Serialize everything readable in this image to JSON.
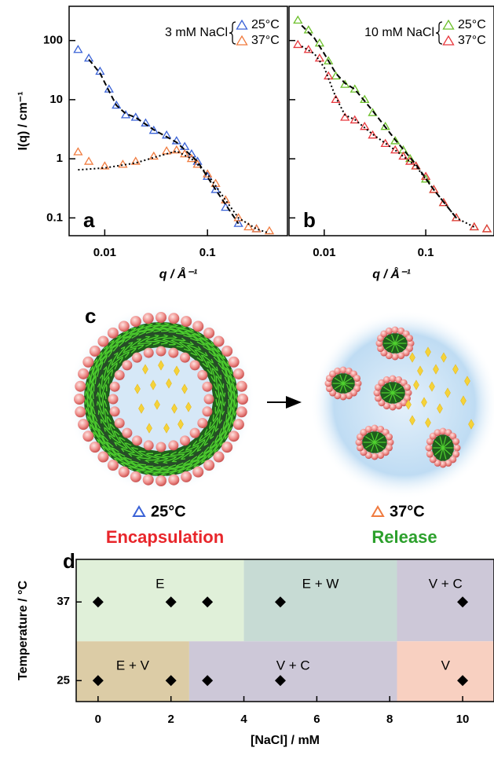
{
  "chart_data": [
    {
      "type": "scatter",
      "panel_label": "a",
      "ylabel": "I(q) / cm⁻¹",
      "xlabel": "q / Å⁻¹",
      "log_x": true,
      "log_y": true,
      "xlim": [
        0.0045,
        0.6
      ],
      "ylim": [
        0.05,
        380
      ],
      "xticks": [
        0.01,
        0.1
      ],
      "yticks": [
        0.1,
        1,
        10,
        100
      ],
      "show_ytick_labels": true,
      "legend": "upper right",
      "legend_title": "3 mM NaCl",
      "series": [
        {
          "name": "25°C",
          "color": "#3a62d6",
          "x": [
            0.0055,
            0.007,
            0.009,
            0.011,
            0.013,
            0.016,
            0.02,
            0.025,
            0.03,
            0.04,
            0.05,
            0.06,
            0.07,
            0.08,
            0.1,
            0.12,
            0.15,
            0.2,
            0.3
          ],
          "values": [
            70,
            50,
            30,
            15,
            8,
            5.5,
            5,
            4,
            3,
            2.5,
            2,
            1.6,
            1.2,
            0.9,
            0.5,
            0.3,
            0.15,
            0.08,
            0.065
          ]
        },
        {
          "name": "37°C",
          "color": "#f07b3f",
          "x": [
            0.0055,
            0.007,
            0.01,
            0.015,
            0.02,
            0.03,
            0.04,
            0.05,
            0.06,
            0.07,
            0.08,
            0.1,
            0.12,
            0.15,
            0.2,
            0.25,
            0.3,
            0.4
          ],
          "values": [
            1.3,
            0.9,
            0.75,
            0.8,
            0.9,
            1.1,
            1.35,
            1.4,
            1.2,
            1.0,
            0.8,
            0.55,
            0.38,
            0.2,
            0.1,
            0.07,
            0.065,
            0.06
          ]
        },
        {
          "color": "#000000",
          "style": "dashed",
          "x": [
            0.007,
            0.009,
            0.011,
            0.013,
            0.016,
            0.02,
            0.03,
            0.05,
            0.08,
            0.12,
            0.2
          ],
          "values": [
            48,
            28,
            14,
            8,
            5.8,
            5,
            3.1,
            1.9,
            0.9,
            0.3,
            0.08
          ]
        },
        {
          "color": "#000000",
          "style": "dotted",
          "x": [
            0.0055,
            0.01,
            0.02,
            0.03,
            0.05,
            0.07,
            0.1,
            0.15,
            0.2,
            0.3,
            0.4
          ],
          "values": [
            0.65,
            0.7,
            0.85,
            1.05,
            1.35,
            1.0,
            0.55,
            0.2,
            0.1,
            0.065,
            0.055
          ]
        }
      ]
    },
    {
      "type": "scatter",
      "panel_label": "b",
      "xlabel": "q / Å⁻¹",
      "log_x": true,
      "log_y": true,
      "xlim": [
        0.0045,
        0.47
      ],
      "ylim": [
        0.05,
        380
      ],
      "xticks": [
        0.01,
        0.1
      ],
      "yticks": [
        0.1,
        1,
        10,
        100
      ],
      "show_ytick_labels": false,
      "legend": "upper right",
      "legend_title": "10 mM NaCl",
      "series": [
        {
          "name": "25°C",
          "color": "#6cc02a",
          "x": [
            0.0055,
            0.007,
            0.009,
            0.011,
            0.013,
            0.016,
            0.02,
            0.025,
            0.03,
            0.04,
            0.05,
            0.06,
            0.07,
            0.08,
            0.1,
            0.12,
            0.15,
            0.2,
            0.3,
            0.4
          ],
          "values": [
            220,
            150,
            90,
            45,
            25,
            18,
            15,
            10,
            6,
            3.5,
            2,
            1.4,
            1.0,
            0.75,
            0.45,
            0.3,
            0.18,
            0.1,
            0.07,
            0.065
          ]
        },
        {
          "name": "37°C",
          "color": "#e8383d",
          "x": [
            0.0055,
            0.007,
            0.009,
            0.011,
            0.013,
            0.016,
            0.02,
            0.025,
            0.03,
            0.04,
            0.05,
            0.06,
            0.07,
            0.08,
            0.1,
            0.12,
            0.15,
            0.2,
            0.3,
            0.4
          ],
          "values": [
            85,
            70,
            50,
            25,
            10,
            5,
            4.5,
            3.5,
            2.5,
            1.8,
            1.4,
            1.1,
            0.9,
            0.75,
            0.5,
            0.3,
            0.18,
            0.1,
            0.07,
            0.065
          ]
        },
        {
          "color": "#000000",
          "style": "dashed",
          "x": [
            0.006,
            0.008,
            0.01,
            0.013,
            0.016,
            0.02,
            0.03,
            0.05,
            0.08,
            0.12,
            0.2
          ],
          "values": [
            180,
            110,
            60,
            28,
            19,
            15,
            6.5,
            2.1,
            0.8,
            0.3,
            0.1
          ]
        },
        {
          "color": "#000000",
          "style": "dotted",
          "x": [
            0.006,
            0.008,
            0.01,
            0.013,
            0.016,
            0.02,
            0.03,
            0.05,
            0.08,
            0.12,
            0.2,
            0.3
          ],
          "values": [
            80,
            60,
            35,
            11,
            5.5,
            4.6,
            2.6,
            1.4,
            0.75,
            0.3,
            0.1,
            0.07
          ]
        }
      ]
    },
    {
      "type": "phase",
      "panel_label": "d",
      "xlabel": "[NaCl] / mM",
      "ylabel": "Temperature / °C",
      "xlim": [
        -0.6,
        10.86
      ],
      "ylim": [
        21.8,
        43.5
      ],
      "xticks": [
        0,
        2,
        4,
        6,
        8,
        10
      ],
      "yticks": [
        25,
        37
      ],
      "regions": [
        {
          "label": "E",
          "x": [
            -0.6,
            4
          ],
          "y": [
            31,
            43.5
          ],
          "color": "#e0f0d9"
        },
        {
          "label": "E + W",
          "x": [
            4,
            8.2
          ],
          "y": [
            31,
            43.5
          ],
          "color": "#c7dbd4"
        },
        {
          "label": "V + C",
          "x": [
            8.2,
            10.86
          ],
          "y": [
            31,
            43.5
          ],
          "color": "#cdc8d8"
        },
        {
          "label": "E + V",
          "x": [
            -0.6,
            2.5
          ],
          "y": [
            21.8,
            31
          ],
          "color": "#dccca6"
        },
        {
          "label": "V + C",
          "x": [
            2.5,
            8.2
          ],
          "y": [
            21.8,
            31
          ],
          "color": "#cdc8d8"
        },
        {
          "label": "V",
          "x": [
            8.2,
            10.86
          ],
          "y": [
            21.8,
            31
          ],
          "color": "#f8d0c1"
        }
      ],
      "marker_color": "#000000",
      "x": [
        0,
        2,
        3,
        5,
        10,
        0,
        2,
        3,
        5,
        10
      ],
      "values": [
        37,
        37,
        37,
        37,
        37,
        25,
        25,
        25,
        25,
        25
      ]
    }
  ],
  "diagram": {
    "panel_label": "c",
    "left": {
      "temperature": "25°C",
      "caption": "Encapsulation"
    },
    "right": {
      "temperature": "37°C",
      "caption": "Release"
    }
  }
}
